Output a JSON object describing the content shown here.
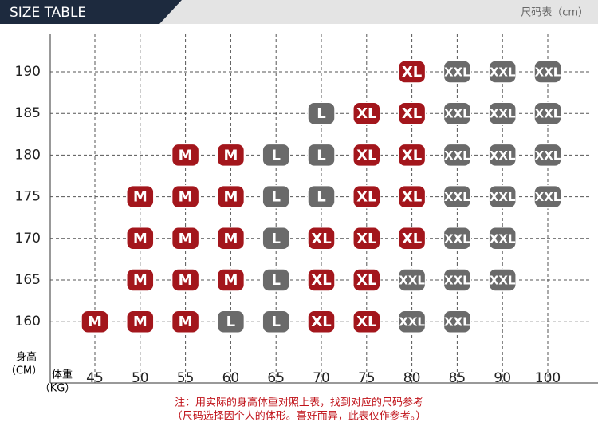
{
  "header": {
    "title": "SIZE TABLE",
    "unit": "尺码表（cm）"
  },
  "axes": {
    "y_label": "身高",
    "y_unit": "（CM）",
    "x_label": "体重",
    "x_unit": "（KG）"
  },
  "weights": [
    45,
    50,
    55,
    60,
    65,
    70,
    75,
    80,
    85,
    90,
    100
  ],
  "heights": [
    190,
    185,
    180,
    175,
    170,
    165,
    160
  ],
  "sizes": [
    [
      null,
      null,
      null,
      null,
      null,
      null,
      null,
      "XL",
      "XXL",
      "XXL",
      "XXL"
    ],
    [
      null,
      null,
      null,
      null,
      null,
      "L",
      "XL",
      "XL",
      "XXL",
      "XXL",
      "XXL"
    ],
    [
      null,
      null,
      "M",
      "M",
      "L",
      "L",
      "XL",
      "XL",
      "XXL",
      "XXL",
      "XXL"
    ],
    [
      null,
      "M",
      "M",
      "M",
      "L",
      "L",
      "XL",
      "XL",
      "XXL",
      "XXL",
      "XXL"
    ],
    [
      null,
      "M",
      "M",
      "M",
      "L",
      "XL",
      "XL",
      "XL",
      "XXL",
      "XXL",
      null
    ],
    [
      null,
      "M",
      "M",
      "M",
      "L",
      "XL",
      "XL",
      "XXL",
      "XXL",
      "XXL",
      null
    ],
    [
      "M",
      "M",
      "M",
      "L",
      "L",
      "XL",
      "XL",
      "XXL",
      "XXL",
      null,
      null
    ]
  ],
  "colors": {
    "M": "#a3161c",
    "L": "#6a6a6a",
    "XL": "#a3161c",
    "XXL": "#6a6a6a"
  },
  "notes": [
    "注：用实际的身高体重对照上表，找到对应的尺码参考",
    "（尺码选择因个人的体形。喜好而异，此表仅作参考。）"
  ]
}
